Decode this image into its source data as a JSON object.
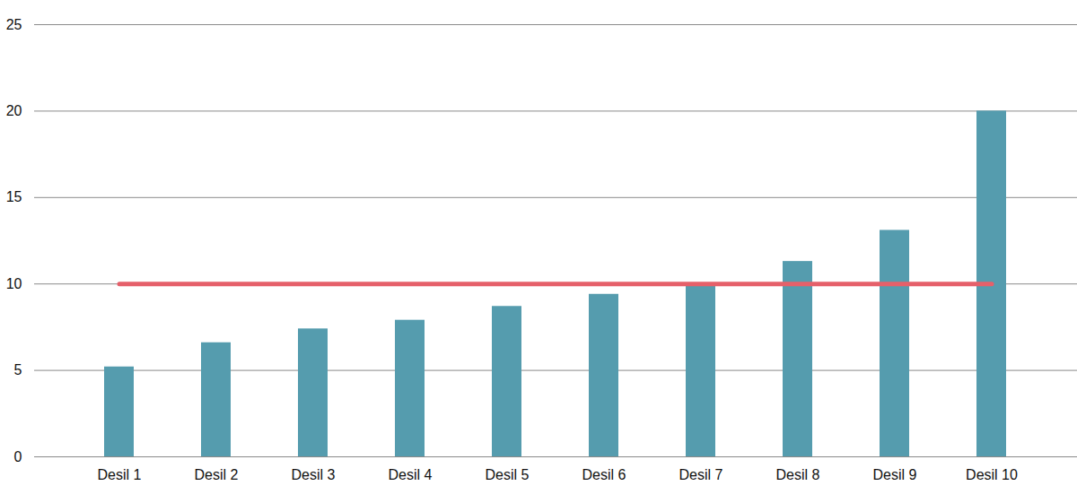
{
  "chart_data": {
    "type": "bar",
    "categories": [
      "Desil 1",
      "Desil 2",
      "Desil 3",
      "Desil 4",
      "Desil 5",
      "Desil 6",
      "Desil 7",
      "Desil 8",
      "Desil 9",
      "Desil 10"
    ],
    "values": [
      5.2,
      6.6,
      7.4,
      7.9,
      8.7,
      9.4,
      10.0,
      11.3,
      13.1,
      20.0
    ],
    "color": "#559cae",
    "reference_line": {
      "value": 10,
      "color": "#e5606a"
    },
    "ylim": [
      0,
      25
    ],
    "yticks": [
      0,
      5,
      10,
      15,
      20,
      25
    ],
    "grid": true
  }
}
